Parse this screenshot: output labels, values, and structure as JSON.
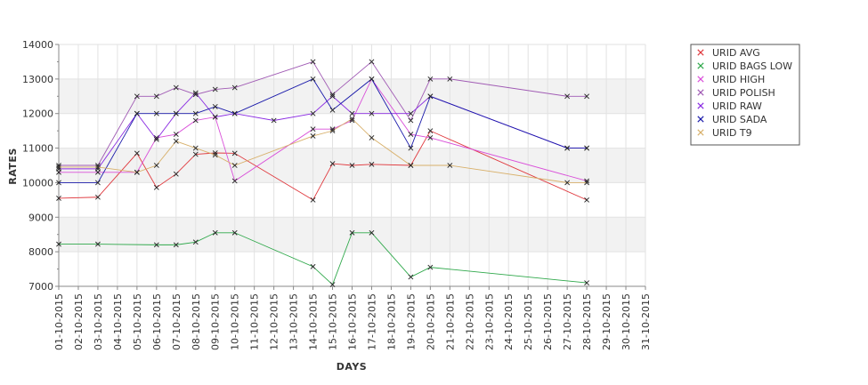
{
  "chart_data": {
    "type": "line",
    "title": "",
    "xlabel": "DAYS",
    "ylabel": "RATES",
    "ylim": [
      7000,
      14000
    ],
    "yticks": [
      7000,
      8000,
      9000,
      10000,
      11000,
      12000,
      13000,
      14000
    ],
    "grid": true,
    "grid_style": "alternating horizontal bands every 1000",
    "legend_position": "top-right outside plot",
    "x": [
      "01-10-2015",
      "02-10-2015",
      "03-10-2015",
      "04-10-2015",
      "05-10-2015",
      "06-10-2015",
      "07-10-2015",
      "08-10-2015",
      "09-10-2015",
      "10-10-2015",
      "11-10-2015",
      "12-10-2015",
      "13-10-2015",
      "14-10-2015",
      "15-10-2015",
      "16-10-2015",
      "17-10-2015",
      "18-10-2015",
      "19-10-2015",
      "20-10-2015",
      "21-10-2015",
      "22-10-2015",
      "23-10-2015",
      "24-10-2015",
      "25-10-2015",
      "26-10-2015",
      "27-10-2015",
      "28-10-2015",
      "29-10-2015",
      "30-10-2015",
      "31-10-2015"
    ],
    "series": [
      {
        "name": "URID AVG",
        "color": "#e0393e",
        "points": [
          [
            1,
            9550
          ],
          [
            3,
            9580
          ],
          [
            5,
            10850
          ],
          [
            6,
            9860
          ],
          [
            7,
            10250
          ],
          [
            8,
            10820
          ],
          [
            9,
            10860
          ],
          [
            10,
            10850
          ],
          [
            14,
            9500
          ],
          [
            15,
            10550
          ],
          [
            16,
            10500
          ],
          [
            17,
            10530
          ],
          [
            19,
            10500
          ],
          [
            20,
            11500
          ],
          [
            28,
            9500
          ]
        ]
      },
      {
        "name": "URID BAGS LOW",
        "color": "#2ea84a",
        "points": [
          [
            1,
            8220
          ],
          [
            3,
            8220
          ],
          [
            6,
            8200
          ],
          [
            7,
            8200
          ],
          [
            8,
            8280
          ],
          [
            9,
            8550
          ],
          [
            10,
            8550
          ],
          [
            14,
            7570
          ],
          [
            15,
            7050
          ],
          [
            16,
            8550
          ],
          [
            17,
            8550
          ],
          [
            19,
            7270
          ],
          [
            20,
            7550
          ],
          [
            28,
            7100
          ]
        ]
      },
      {
        "name": "URID HIGH",
        "color": "#d94fd9",
        "points": [
          [
            1,
            10300
          ],
          [
            3,
            10300
          ],
          [
            5,
            10300
          ],
          [
            6,
            11300
          ],
          [
            7,
            11400
          ],
          [
            8,
            11800
          ],
          [
            9,
            11900
          ],
          [
            10,
            10050
          ],
          [
            14,
            11550
          ],
          [
            15,
            11550
          ],
          [
            16,
            11800
          ],
          [
            17,
            13000
          ],
          [
            19,
            11400
          ],
          [
            20,
            11300
          ],
          [
            28,
            10050
          ]
        ]
      },
      {
        "name": "URID POLISH",
        "color": "#a05ab4",
        "points": [
          [
            1,
            10500
          ],
          [
            3,
            10500
          ],
          [
            5,
            12500
          ],
          [
            6,
            12500
          ],
          [
            7,
            12750
          ],
          [
            8,
            12550
          ],
          [
            9,
            12700
          ],
          [
            10,
            12750
          ],
          [
            14,
            13500
          ],
          [
            15,
            12550
          ],
          [
            17,
            13500
          ],
          [
            19,
            11800
          ],
          [
            20,
            13000
          ],
          [
            21,
            13000
          ],
          [
            27,
            12500
          ],
          [
            28,
            12500
          ]
        ]
      },
      {
        "name": "URID RAW",
        "color": "#8a2be2",
        "points": [
          [
            1,
            10400
          ],
          [
            3,
            10400
          ],
          [
            5,
            12000
          ],
          [
            6,
            11250
          ],
          [
            7,
            12000
          ],
          [
            8,
            12600
          ],
          [
            9,
            11900
          ],
          [
            10,
            12000
          ],
          [
            12,
            11800
          ],
          [
            14,
            12000
          ],
          [
            15,
            12500
          ],
          [
            16,
            12000
          ],
          [
            17,
            12000
          ],
          [
            19,
            12000
          ],
          [
            20,
            12500
          ],
          [
            27,
            11000
          ],
          [
            28,
            11000
          ]
        ]
      },
      {
        "name": "URID SADA",
        "color": "#1a1aaa",
        "points": [
          [
            1,
            10000
          ],
          [
            3,
            10000
          ],
          [
            5,
            12000
          ],
          [
            6,
            12000
          ],
          [
            7,
            12000
          ],
          [
            8,
            12000
          ],
          [
            9,
            12200
          ],
          [
            10,
            12000
          ],
          [
            14,
            13000
          ],
          [
            15,
            12100
          ],
          [
            17,
            13000
          ],
          [
            19,
            11000
          ],
          [
            20,
            12500
          ],
          [
            27,
            11000
          ],
          [
            28,
            11000
          ]
        ]
      },
      {
        "name": "URID T9",
        "color": "#d8b06a",
        "points": [
          [
            1,
            10450
          ],
          [
            3,
            10450
          ],
          [
            5,
            10300
          ],
          [
            6,
            10500
          ],
          [
            7,
            11200
          ],
          [
            8,
            11000
          ],
          [
            9,
            10800
          ],
          [
            10,
            10500
          ],
          [
            14,
            11350
          ],
          [
            15,
            11500
          ],
          [
            16,
            11850
          ],
          [
            17,
            11300
          ],
          [
            19,
            10500
          ],
          [
            21,
            10500
          ],
          [
            27,
            10000
          ],
          [
            28,
            10000
          ]
        ]
      }
    ]
  }
}
